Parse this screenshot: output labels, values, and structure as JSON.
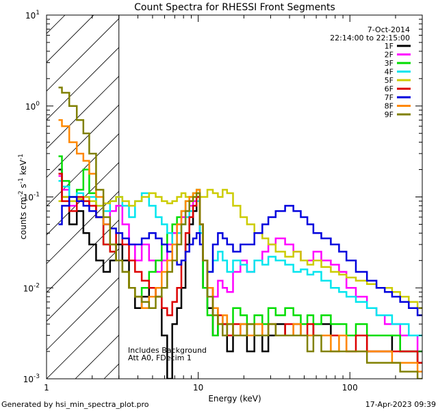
{
  "chart_data": {
    "type": "line",
    "title": "Count Spectra for RHESSI Front Segments",
    "xlabel": "Energy (keV)",
    "ylabel": "counts cm",
    "ylabel_sup1": "-2",
    "ylabel_mid": " s",
    "ylabel_sup2": "-1",
    "ylabel_end": " keV",
    "ylabel_sup3": "-1",
    "xscale": "log",
    "yscale": "log",
    "xlim": [
      1,
      300
    ],
    "ylim": [
      0.001,
      10
    ],
    "x_tick_labels": [
      "1",
      "10",
      "100"
    ],
    "y_tick_labels": [
      {
        "base": "10",
        "exp": "1",
        "value": 10
      },
      {
        "base": "10",
        "exp": "0",
        "value": 1
      },
      {
        "base": "10",
        "exp": "-1",
        "value": 0.1
      },
      {
        "base": "10",
        "exp": "-2",
        "value": 0.01
      },
      {
        "base": "10",
        "exp": "-3",
        "value": 0.001
      }
    ],
    "date": "7-Oct-2014",
    "time_range": "22:14:00 to 22:15:00",
    "hatched_region_xmax": 3,
    "annotation_lines": [
      "Includes Background",
      "Att A0, FDecim 1"
    ],
    "footer_left": "Generated by hsi_min_spectra_plot.pro",
    "footer_right": "17-Apr-2023 09:39",
    "legend_position": "top-right",
    "series": [
      {
        "name": "1F",
        "color": "#000000"
      },
      {
        "name": "2F",
        "color": "#ff00ff"
      },
      {
        "name": "3F",
        "color": "#00dd00"
      },
      {
        "name": "4F",
        "color": "#00e5ee"
      },
      {
        "name": "5F",
        "color": "#cccc00"
      },
      {
        "name": "6F",
        "color": "#dd0000"
      },
      {
        "name": "7F",
        "color": "#0000dd"
      },
      {
        "name": "8F",
        "color": "#ff8800"
      },
      {
        "name": "9F",
        "color": "#808000"
      }
    ],
    "x": [
      1.2,
      1.33,
      1.5,
      1.67,
      1.83,
      2.0,
      2.25,
      2.5,
      2.75,
      3.0,
      3.33,
      3.67,
      4.0,
      4.5,
      5.0,
      5.5,
      6.0,
      6.5,
      7.0,
      7.5,
      8.0,
      8.5,
      9.0,
      9.5,
      10.0,
      10.5,
      11.0,
      12.0,
      13.0,
      14.0,
      15.0,
      16.0,
      18.0,
      20.0,
      22.0,
      25.0,
      28.0,
      30.0,
      35.0,
      40.0,
      45.0,
      50.0,
      55.0,
      60.0,
      70.0,
      80.0,
      90.0,
      100.0,
      120.0,
      140.0,
      160.0,
      180.0,
      200.0,
      230.0,
      260.0,
      300.0
    ],
    "values": {
      "1F": [
        0.2,
        0.1,
        0.05,
        0.07,
        0.04,
        0.03,
        0.02,
        0.015,
        0.02,
        0.03,
        0.02,
        0.01,
        0.006,
        0.008,
        0.01,
        0.008,
        0.003,
        0.001,
        0.004,
        0.006,
        0.01,
        0.03,
        0.05,
        0.07,
        0.1,
        0.04,
        0.01,
        0.006,
        0.003,
        0.005,
        0.004,
        0.002,
        0.003,
        0.004,
        0.002,
        0.003,
        0.002,
        0.003,
        0.004,
        0.003,
        0.004,
        0.003,
        0.003,
        0.004,
        0.004,
        0.003,
        0.003,
        0.003,
        0.003,
        0.002,
        0.002,
        0.002,
        0.003,
        0.002,
        0.002,
        0.0015
      ],
      "2F": [
        0.17,
        0.12,
        0.08,
        0.09,
        0.1,
        0.08,
        0.06,
        0.05,
        0.07,
        0.08,
        0.05,
        0.03,
        0.02,
        0.03,
        0.02,
        0.015,
        0.02,
        0.03,
        0.04,
        0.05,
        0.06,
        0.07,
        0.08,
        0.09,
        0.1,
        0.05,
        0.02,
        0.01,
        0.008,
        0.012,
        0.01,
        0.009,
        0.015,
        0.02,
        0.015,
        0.02,
        0.025,
        0.03,
        0.035,
        0.03,
        0.025,
        0.02,
        0.02,
        0.025,
        0.02,
        0.018,
        0.015,
        0.01,
        0.008,
        0.006,
        0.005,
        0.004,
        0.004,
        0.003,
        0.003,
        0.002
      ],
      "3F": [
        0.28,
        0.15,
        0.1,
        0.12,
        0.2,
        0.11,
        0.06,
        0.03,
        0.025,
        0.02,
        0.015,
        0.01,
        0.008,
        0.01,
        0.015,
        0.02,
        0.03,
        0.04,
        0.05,
        0.06,
        0.07,
        0.09,
        0.1,
        0.11,
        0.12,
        0.05,
        0.01,
        0.005,
        0.003,
        0.004,
        0.005,
        0.004,
        0.006,
        0.005,
        0.004,
        0.005,
        0.004,
        0.006,
        0.005,
        0.006,
        0.005,
        0.004,
        0.005,
        0.004,
        0.005,
        0.004,
        0.004,
        0.003,
        0.004,
        0.003,
        0.003,
        0.003,
        0.003,
        0.002,
        0.002,
        0.002
      ],
      "4F": [
        0.15,
        0.13,
        0.1,
        0.11,
        0.09,
        0.1,
        0.08,
        0.07,
        0.09,
        0.1,
        0.08,
        0.06,
        0.09,
        0.11,
        0.08,
        0.06,
        0.05,
        0.04,
        0.03,
        0.04,
        0.05,
        0.06,
        0.07,
        0.08,
        0.09,
        0.04,
        0.02,
        0.015,
        0.02,
        0.025,
        0.02,
        0.015,
        0.02,
        0.018,
        0.015,
        0.02,
        0.018,
        0.022,
        0.02,
        0.018,
        0.015,
        0.016,
        0.014,
        0.015,
        0.012,
        0.01,
        0.009,
        0.008,
        0.007,
        0.006,
        0.005,
        0.005,
        0.004,
        0.004,
        0.003,
        0.003
      ],
      "5F": [
        0.09,
        0.1,
        0.09,
        0.095,
        0.1,
        0.09,
        0.08,
        0.085,
        0.09,
        0.1,
        0.09,
        0.08,
        0.09,
        0.1,
        0.11,
        0.1,
        0.09,
        0.085,
        0.09,
        0.1,
        0.11,
        0.1,
        0.09,
        0.1,
        0.11,
        0.1,
        0.1,
        0.12,
        0.11,
        0.1,
        0.12,
        0.11,
        0.08,
        0.06,
        0.05,
        0.04,
        0.035,
        0.03,
        0.025,
        0.022,
        0.025,
        0.02,
        0.018,
        0.02,
        0.017,
        0.015,
        0.014,
        0.013,
        0.012,
        0.011,
        0.01,
        0.01,
        0.009,
        0.008,
        0.007,
        0.006
      ],
      "6F": [
        0.18,
        0.09,
        0.07,
        0.1,
        0.09,
        0.08,
        0.06,
        0.03,
        0.025,
        0.04,
        0.03,
        0.02,
        0.015,
        0.012,
        0.01,
        0.008,
        0.006,
        0.005,
        0.007,
        0.01,
        0.02,
        0.04,
        0.06,
        0.08,
        0.1,
        0.05,
        0.02,
        0.01,
        0.006,
        0.005,
        0.004,
        0.003,
        0.004,
        0.003,
        0.003,
        0.004,
        0.003,
        0.004,
        0.003,
        0.004,
        0.003,
        0.003,
        0.004,
        0.003,
        0.003,
        0.003,
        0.003,
        0.002,
        0.003,
        0.002,
        0.002,
        0.002,
        0.002,
        0.002,
        0.002,
        0.0015
      ],
      "7F": [
        0.05,
        0.08,
        0.1,
        0.09,
        0.08,
        0.07,
        0.06,
        0.05,
        0.045,
        0.04,
        0.035,
        0.03,
        0.03,
        0.035,
        0.04,
        0.035,
        0.03,
        0.025,
        0.02,
        0.018,
        0.02,
        0.025,
        0.03,
        0.035,
        0.04,
        0.03,
        0.02,
        0.015,
        0.03,
        0.04,
        0.035,
        0.03,
        0.025,
        0.03,
        0.03,
        0.04,
        0.05,
        0.06,
        0.07,
        0.08,
        0.07,
        0.06,
        0.05,
        0.04,
        0.035,
        0.03,
        0.025,
        0.02,
        0.015,
        0.012,
        0.01,
        0.009,
        0.008,
        0.007,
        0.006,
        0.005
      ],
      "8F": [
        0.7,
        0.6,
        0.4,
        0.3,
        0.25,
        0.18,
        0.1,
        0.05,
        0.03,
        0.02,
        0.015,
        0.01,
        0.008,
        0.006,
        0.008,
        0.01,
        0.015,
        0.02,
        0.03,
        0.05,
        0.07,
        0.09,
        0.1,
        0.11,
        0.12,
        0.05,
        0.02,
        0.01,
        0.006,
        0.004,
        0.005,
        0.004,
        0.003,
        0.004,
        0.003,
        0.004,
        0.003,
        0.004,
        0.003,
        0.003,
        0.004,
        0.003,
        0.003,
        0.003,
        0.003,
        0.002,
        0.003,
        0.002,
        0.002,
        0.002,
        0.002,
        0.002,
        0.0015,
        0.0015,
        0.0015,
        0.0012
      ],
      "9F": [
        1.6,
        1.4,
        1.0,
        0.7,
        0.5,
        0.3,
        0.12,
        0.06,
        0.03,
        0.02,
        0.015,
        0.01,
        0.008,
        0.007,
        0.006,
        0.008,
        0.01,
        0.015,
        0.02,
        0.03,
        0.05,
        0.07,
        0.09,
        0.1,
        0.11,
        0.05,
        0.02,
        0.008,
        0.005,
        0.004,
        0.003,
        0.004,
        0.003,
        0.003,
        0.004,
        0.003,
        0.003,
        0.004,
        0.003,
        0.003,
        0.003,
        0.003,
        0.002,
        0.003,
        0.002,
        0.002,
        0.002,
        0.002,
        0.002,
        0.0015,
        0.0015,
        0.0015,
        0.0015,
        0.0012,
        0.0012,
        0.001
      ]
    }
  }
}
